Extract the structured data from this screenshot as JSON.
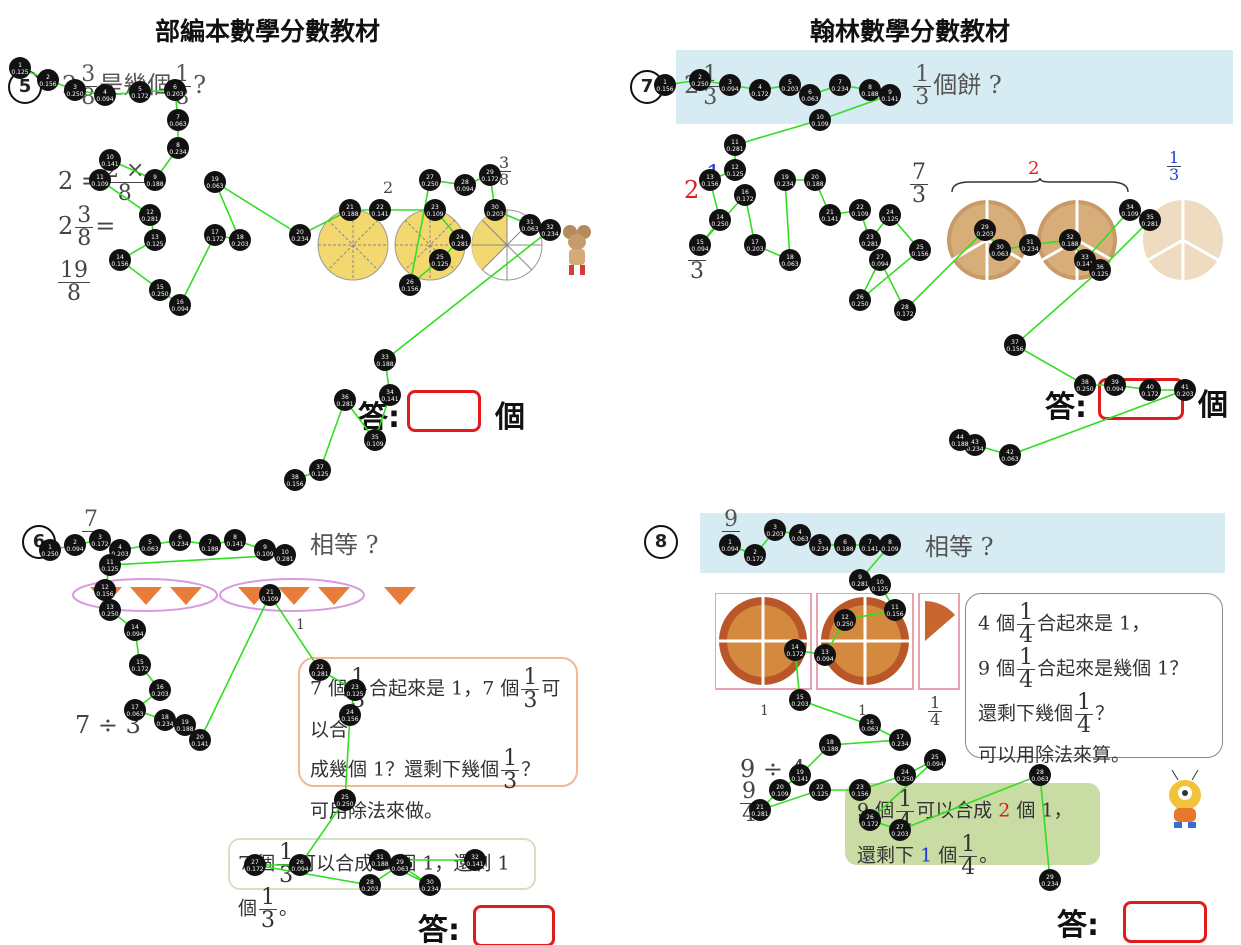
{
  "headers": {
    "left": "部編本數學分數教材",
    "right": "翰林數學分數教材"
  },
  "panels": {
    "q5": {
      "number": "5",
      "question": "2 3/8 是幾個 1/8 ?",
      "q_whole": "2",
      "q_num": "3",
      "q_den": "8",
      "q_word": "是幾個",
      "q_unit_num": "1",
      "q_unit_den": "8",
      "q_mark": "?",
      "line1": "2 =",
      "line1_num": "2 ×",
      "line1_den": "8",
      "line2_whole": "2",
      "line2_num": "3",
      "line2_den": "8",
      "line2_eq": "=",
      "line3_num": "19",
      "line3_den": "8",
      "brace_label": "2",
      "side_num": "3",
      "side_den": "8",
      "answer_label": "答:",
      "answer_unit": "個"
    },
    "q7": {
      "number": "7",
      "q_whole": "2",
      "q_num": "1",
      "q_den": "3",
      "q_unit_num": "1",
      "q_unit_den": "3",
      "q_tail": "個餅 ?",
      "red_two": "2",
      "blue_one": "1",
      "frac_7_num": "7",
      "frac_7_den": "3",
      "brace_label": "2",
      "side_num": "1",
      "side_den": "3",
      "left_num": "7",
      "left_den": "3",
      "answer_label": "答:",
      "answer_unit": "個"
    },
    "q6": {
      "number": "6",
      "q_num": "7",
      "question_tail": "相等 ?",
      "label_one": "1",
      "bubble_l1_a": "7 個",
      "bubble_l1_b": "合起來是 1，7 個",
      "bubble_l1_c": "可以合",
      "bubble_l2": "成幾個 1？還剩下幾個",
      "bubble_l2_end": "？",
      "bubble_l3": "可用除法來做。",
      "frac_num": "1",
      "frac_den": "3",
      "division": "7 ÷ 3",
      "note_a": "7 個",
      "note_b": "可以合成 2 個 1，還剩 1 個",
      "note_end": "。",
      "answer_label": "答:"
    },
    "q8": {
      "number": "8",
      "q_num": "9",
      "question_tail": "相等 ?",
      "label_one_a": "1",
      "label_one_b": "1",
      "label_quarter_num": "1",
      "label_quarter_den": "4",
      "bubble_l1_a": "4 個",
      "bubble_l1_b": "合起來是 1，",
      "bubble_l2_a": "9 個",
      "bubble_l2_b": "合起來是幾個 1？",
      "bubble_l3_a": "還剩下幾個",
      "bubble_l3_b": "？",
      "bubble_l4": "可以用除法來算。",
      "frac_num": "1",
      "frac_den": "4",
      "division": "9 ÷ 4",
      "left_num": "9",
      "left_den": "4",
      "green_l1_a": "9 個",
      "green_l1_b": "可以合成",
      "green_red": "2",
      "green_l1_c": "個 1，",
      "green_l2_a": "還剩下",
      "green_blue": "1",
      "green_l2_b": "個",
      "green_l2_end": "。",
      "answer_label": "答:"
    }
  },
  "fixation_colors": {
    "dot": "#111111",
    "line": "#33dd22",
    "answer_box": "#e01b1b",
    "band": "#d6ebf2"
  }
}
